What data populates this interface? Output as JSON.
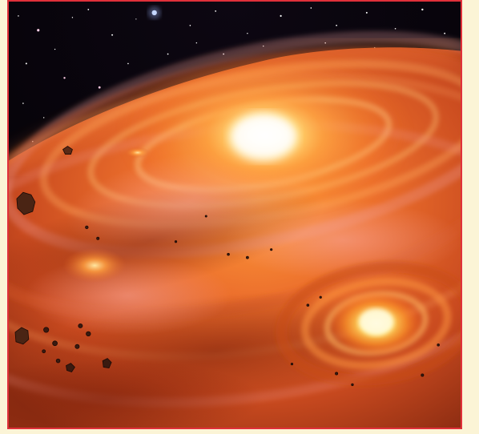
{
  "page": {
    "background_color": "#fbf4d6",
    "border_color": "#e0303a"
  },
  "scene": {
    "subject": "protoplanetary-disk",
    "elements": [
      "starfield",
      "accretion-disk",
      "central-protostar",
      "secondary-protostar",
      "minor-glow",
      "asteroids"
    ],
    "colors": {
      "space": "#050308",
      "disk_outer": "#b8401c",
      "disk_mid": "#e2662a",
      "disk_bright": "#ff9a3a",
      "core": "#fffbe6",
      "secondary_core": "#fff2a0"
    }
  }
}
